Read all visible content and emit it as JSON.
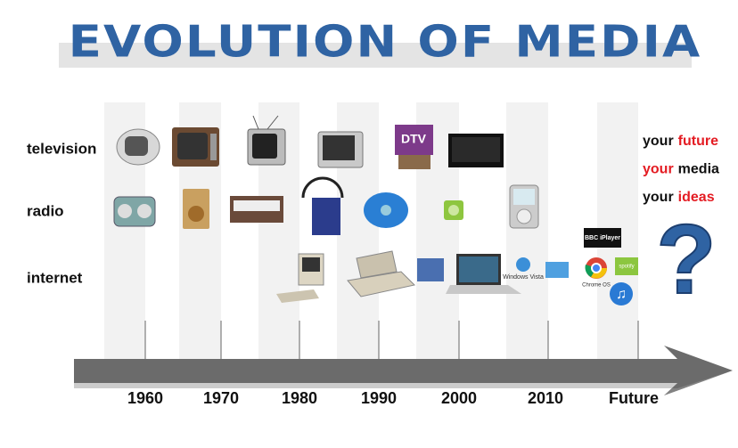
{
  "header": {
    "title": "EVOLUTION OF MEDIA"
  },
  "rows": [
    "television",
    "radio",
    "internet"
  ],
  "timeline": [
    "1960",
    "1970",
    "1980",
    "1990",
    "2000",
    "2010",
    "Future"
  ],
  "slogan": [
    [
      {
        "text": "your",
        "accent": false
      },
      {
        "text": "future",
        "accent": true
      }
    ],
    [
      {
        "text": "your",
        "accent": true
      },
      {
        "text": "media",
        "accent": false
      }
    ],
    [
      {
        "text": "your",
        "accent": false
      },
      {
        "text": "ideas",
        "accent": true
      }
    ]
  ],
  "logos": {
    "dtv": "DTV",
    "bbc": "BBC iPlayer",
    "chrome": "Chrome OS",
    "spotify": "spotify",
    "vista": "Windows Vista"
  },
  "question": "?"
}
